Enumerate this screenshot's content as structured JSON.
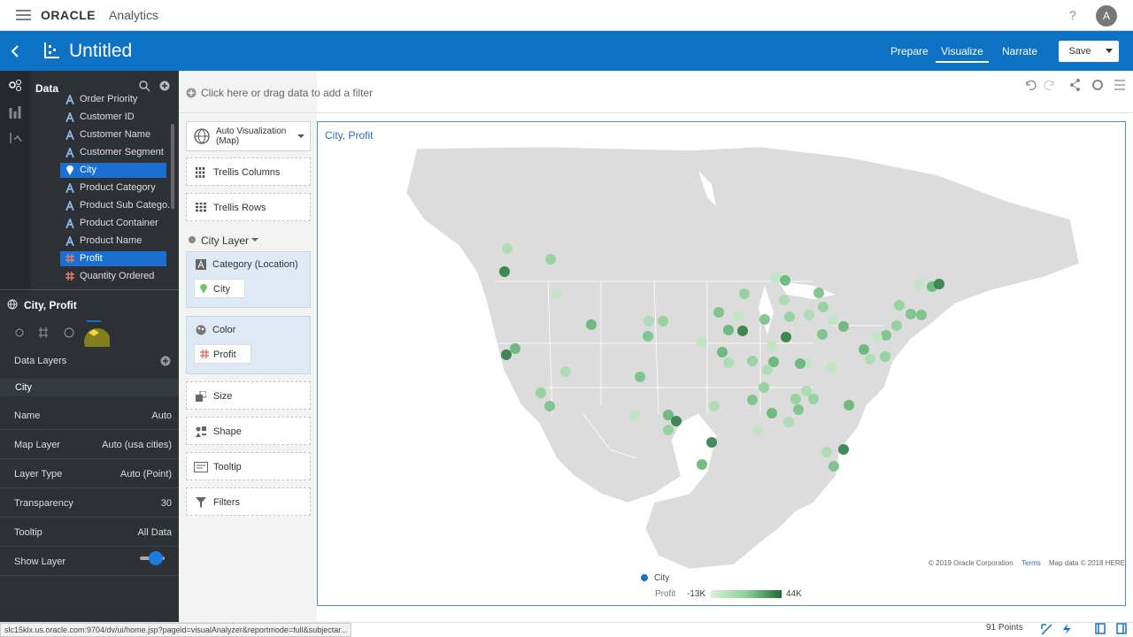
{
  "top_bar": {
    "brand": "ORACLE",
    "product": "Analytics",
    "help": "?",
    "avatar": "A"
  },
  "project_bar": {
    "title": "Untitled",
    "tabs": [
      "Prepare",
      "Visualize",
      "Narrate"
    ],
    "save": "Save"
  },
  "data_panel": {
    "title": "Data",
    "fields": [
      "Order Priority",
      "Customer ID",
      "Customer Name",
      "Customer Segment",
      "City",
      "Product Category",
      "Product Sub Catego...",
      "Product Container",
      "Product Name",
      "Profit",
      "Quantity Ordered"
    ]
  },
  "properties": {
    "title": "City, Profit",
    "section": "Data Layers",
    "layer": "City",
    "rows": [
      [
        "Name",
        "Auto"
      ],
      [
        "Map Layer",
        "Auto (usa cities)"
      ],
      [
        "Layer Type",
        "Auto (Point)"
      ],
      [
        "Transparency",
        "30"
      ],
      [
        "Tooltip",
        "All Data"
      ],
      [
        "Show Layer",
        ""
      ]
    ]
  },
  "filter_bar": {
    "hint": "Click here or drag data to add a filter"
  },
  "grammar": {
    "viz_type": "Auto Visualization (Map)",
    "trellis_columns": "Trellis Columns",
    "trellis_rows": "Trellis Rows",
    "layer": "City Layer",
    "category": "Category (Location)",
    "category_item": "City",
    "color": "Color",
    "color_item": "Profit",
    "size": "Size",
    "shape": "Shape",
    "tooltip": "Tooltip",
    "filters": "Filters"
  },
  "canvas": {
    "title": "City, Profit",
    "attribution": [
      "© 2019 Oracle Corporation",
      "Terms",
      "Map data © 2018 HERE"
    ],
    "legend": {
      "series": "City",
      "measure": "Profit",
      "min": "-13K",
      "max": "44K"
    }
  },
  "status_bar": {
    "url": "slc15klx.us.oracle.com:9704/dv/ui/home.jsp?pageid=visualAnalyzer&reportmode=full&subjectar...",
    "points": "91 Points"
  }
}
